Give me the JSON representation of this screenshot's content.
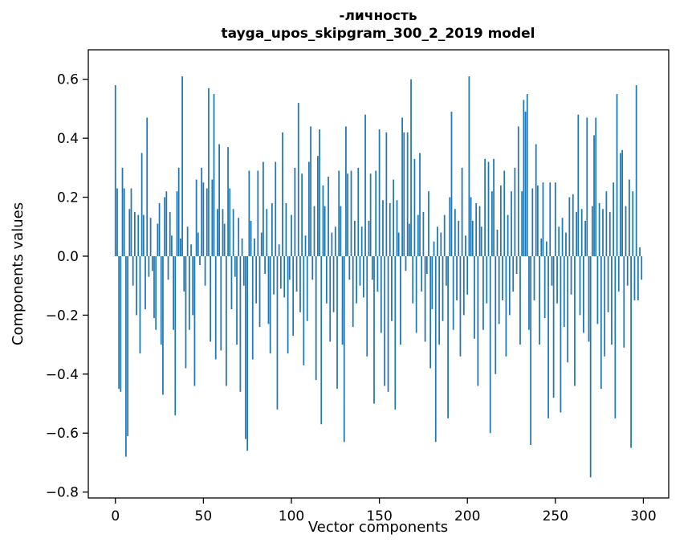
{
  "figure": {
    "title_line1": "-личность",
    "title_line2": "tayga_upos_skipgram_300_2_2019 model",
    "xlabel": "Vector components",
    "ylabel": "Components values"
  },
  "chart_data": {
    "type": "bar",
    "title": "-личность",
    "subtitle": "tayga_upos_skipgram_300_2_2019 model",
    "xlabel": "Vector components",
    "ylabel": "Components values",
    "bar_color": "#1f77b4",
    "grid": false,
    "legend": "none",
    "xlim": [
      -15.4,
      314.4
    ],
    "ylim": [
      -0.82,
      0.7
    ],
    "x_ticks": [
      0,
      50,
      100,
      150,
      200,
      250,
      300
    ],
    "x_tick_labels": [
      "0",
      "50",
      "100",
      "150",
      "200",
      "250",
      "300"
    ],
    "y_ticks": [
      0.6,
      0.4,
      0.2,
      0.0,
      -0.2,
      -0.4,
      -0.6,
      -0.8
    ],
    "y_tick_labels": [
      "0.6",
      "0.4",
      "0.2",
      "0.0",
      "−0.2",
      "−0.4",
      "−0.6",
      "−0.8"
    ],
    "n_components": 300,
    "values": [
      0.58,
      0.23,
      -0.45,
      -0.46,
      0.3,
      0.23,
      -0.68,
      -0.61,
      0.16,
      0.23,
      -0.1,
      0.15,
      -0.2,
      0.14,
      -0.33,
      0.35,
      0.14,
      -0.18,
      0.47,
      -0.07,
      0.13,
      -0.05,
      -0.21,
      -0.25,
      0.11,
      0.18,
      -0.3,
      -0.47,
      0.2,
      0.22,
      -0.08,
      0.15,
      0.07,
      -0.25,
      -0.54,
      0.22,
      0.3,
      0.06,
      0.61,
      -0.12,
      -0.38,
      0.1,
      -0.25,
      0.04,
      -0.2,
      -0.44,
      0.26,
      0.08,
      -0.03,
      0.3,
      0.25,
      -0.1,
      0.23,
      0.57,
      -0.29,
      0.26,
      0.55,
      -0.35,
      0.16,
      0.38,
      -0.32,
      0.16,
      0.11,
      -0.44,
      0.37,
      0.23,
      -0.18,
      0.16,
      -0.07,
      -0.3,
      0.13,
      -0.46,
      0.06,
      -0.1,
      -0.62,
      -0.66,
      0.29,
      0.12,
      -0.35,
      0.06,
      -0.16,
      0.29,
      -0.24,
      0.08,
      0.32,
      -0.06,
      0.16,
      -0.23,
      -0.33,
      0.18,
      -0.13,
      0.32,
      -0.52,
      0.04,
      -0.11,
      0.42,
      -0.14,
      0.18,
      -0.33,
      -0.08,
      0.14,
      -0.27,
      0.3,
      -0.12,
      0.52,
      -0.19,
      0.28,
      -0.37,
      0.07,
      -0.22,
      0.32,
      0.44,
      -0.08,
      0.17,
      -0.42,
      0.34,
      0.43,
      -0.57,
      0.24,
      0.17,
      -0.16,
      0.27,
      -0.29,
      0.08,
      -0.19,
      0.1,
      -0.45,
      0.29,
      0.17,
      -0.3,
      -0.63,
      0.44,
      0.28,
      -0.08,
      0.29,
      -0.24,
      0.12,
      -0.16,
      0.3,
      -0.1,
      0.1,
      -0.14,
      0.48,
      -0.34,
      0.12,
      0.28,
      -0.08,
      -0.5,
      0.29,
      -0.12,
      0.43,
      -0.26,
      0.19,
      -0.44,
      0.42,
      -0.46,
      0.18,
      -0.22,
      0.26,
      -0.52,
      0.19,
      0.08,
      -0.3,
      0.47,
      0.42,
      -0.05,
      0.42,
      0.11,
      0.6,
      -0.16,
      0.33,
      -0.26,
      0.14,
      0.35,
      -0.12,
      0.15,
      -0.29,
      -0.06,
      0.22,
      -0.38,
      -0.18,
      0.05,
      -0.63,
      0.1,
      -0.3,
      0.08,
      -0.22,
      0.14,
      -0.1,
      -0.55,
      0.2,
      0.49,
      -0.25,
      0.16,
      -0.15,
      0.12,
      -0.34,
      0.3,
      -0.2,
      0.07,
      -0.13,
      0.61,
      0.2,
      0.12,
      -0.28,
      0.18,
      -0.44,
      0.17,
      0.1,
      -0.25,
      0.33,
      -0.16,
      0.32,
      -0.6,
      0.22,
      0.33,
      -0.4,
      0.09,
      -0.23,
      0.24,
      -0.15,
      0.29,
      -0.34,
      0.14,
      -0.2,
      0.22,
      -0.12,
      0.3,
      -0.06,
      0.44,
      -0.3,
      0.22,
      0.53,
      0.49,
      0.55,
      -0.25,
      -0.64,
      0.23,
      -0.15,
      0.38,
      0.24,
      -0.3,
      0.06,
      0.25,
      -0.21,
      0.05,
      -0.55,
      0.25,
      -0.1,
      -0.48,
      0.25,
      -0.16,
      0.1,
      -0.53,
      0.13,
      -0.24,
      0.08,
      -0.36,
      0.2,
      -0.13,
      0.21,
      -0.44,
      0.15,
      0.48,
      -0.2,
      0.16,
      -0.26,
      0.12,
      0.47,
      -0.29,
      -0.75,
      0.17,
      0.41,
      0.47,
      -0.23,
      0.18,
      -0.45,
      0.16,
      -0.34,
      0.22,
      -0.19,
      0.15,
      -0.3,
      0.25,
      -0.55,
      0.55,
      -0.12,
      0.35,
      0.36,
      -0.31,
      0.17,
      -0.1,
      0.26,
      -0.65,
      0.22,
      -0.15,
      0.58,
      -0.15,
      0.03,
      -0.08
    ]
  }
}
